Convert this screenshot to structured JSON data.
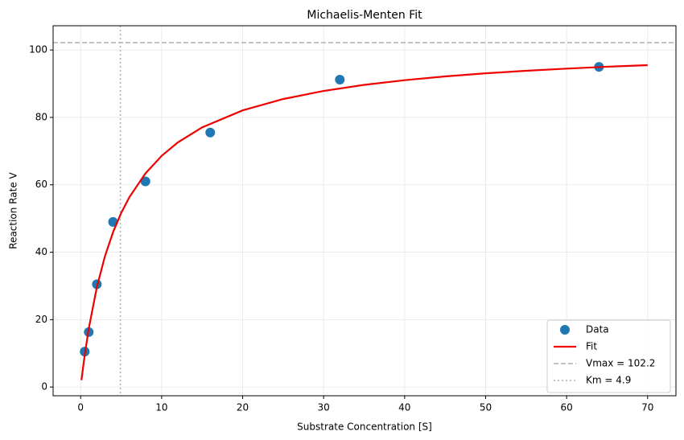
{
  "chart_data": {
    "type": "scatter",
    "title": "Michaelis-Menten Fit",
    "x_label": "Substrate Concentration [S]",
    "y_label": "Reaction Rate V",
    "xlim": [
      -3.4,
      73.5
    ],
    "ylim": [
      -2.6,
      107.2
    ],
    "xticks": [
      0,
      10,
      20,
      30,
      40,
      50,
      60,
      70
    ],
    "yticks": [
      0,
      20,
      40,
      60,
      80,
      100
    ],
    "grid": true,
    "legend": "lower right",
    "series": [
      {
        "name": "Data",
        "type": "scatter",
        "color": "#1f77b4",
        "x": [
          0.5,
          1,
          2,
          4,
          8,
          16,
          32,
          64
        ],
        "values": [
          10.5,
          16.3,
          30.5,
          49,
          61,
          75.5,
          91.2,
          95
        ]
      },
      {
        "name": "Fit",
        "type": "line",
        "color": "#ee0000",
        "x": [
          0.1,
          0.5,
          1,
          2,
          3,
          4,
          5,
          6,
          8,
          10,
          12,
          15,
          20,
          25,
          30,
          35,
          40,
          45,
          50,
          55,
          60,
          65,
          70
        ],
        "values": [
          2.04,
          9.46,
          17.32,
          29.62,
          38.81,
          45.93,
          51.62,
          56.26,
          63.38,
          68.59,
          72.57,
          77.04,
          82.09,
          85.45,
          87.85,
          89.65,
          91.05,
          92.16,
          93.08,
          93.84,
          94.48,
          95.04,
          95.51
        ]
      }
    ],
    "reference_lines": [
      {
        "name": "Vmax = 102.2",
        "axis": "y",
        "value": 102.2,
        "color": "#b0b0b0",
        "style": "dashed"
      },
      {
        "name": "Km = 4.9",
        "axis": "x",
        "value": 4.9,
        "color": "#b0b0b0",
        "style": "dotted"
      }
    ]
  }
}
